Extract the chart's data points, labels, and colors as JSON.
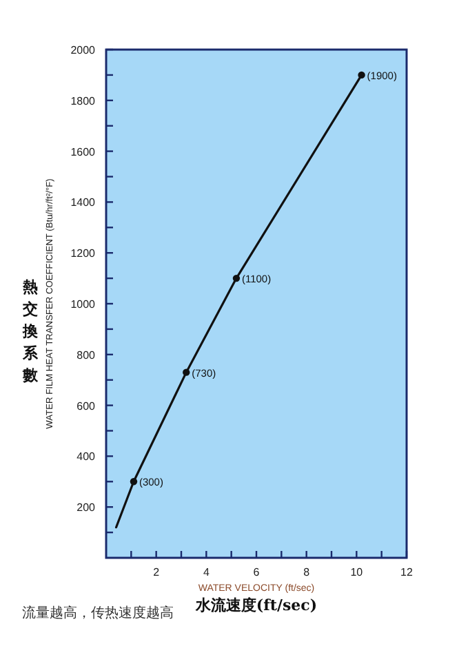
{
  "chart_data": {
    "type": "line",
    "ylabel": "WATER FILM HEAT TRANSFER COEFFICIENT (Btu/hr/ft²/°F)",
    "xlabel": "WATER VELOCITY (ft/sec)",
    "annotations": [
      "熱交換系數",
      "水流速度(ft/sec)",
      "流量越高，传热速度越高"
    ],
    "xlim": [
      0,
      12
    ],
    "ylim": [
      0,
      2000
    ],
    "xticks": [
      {
        "value": 1,
        "label": null
      },
      2,
      {
        "value": 3,
        "label": null
      },
      4,
      {
        "value": 5,
        "label": null
      },
      6,
      {
        "value": 7,
        "label": null
      },
      8,
      {
        "value": 9,
        "label": null
      },
      10,
      {
        "value": 11,
        "label": null
      },
      12
    ],
    "yticks": [
      {
        "value": 100,
        "label": null
      },
      200,
      {
        "value": 300,
        "label": null
      },
      400,
      {
        "value": 500,
        "label": null
      },
      600,
      {
        "value": 700,
        "label": null
      },
      800,
      {
        "value": 900,
        "label": null
      },
      1000,
      {
        "value": 1100,
        "label": null
      },
      1200,
      {
        "value": 1300,
        "label": null
      },
      1400,
      {
        "value": 1500,
        "label": null
      },
      1600,
      {
        "value": 1700,
        "label": null
      },
      1800,
      {
        "value": 1900,
        "label": null
      },
      2000
    ],
    "grid": false,
    "series": [
      {
        "type": "line",
        "color": "#111111",
        "marker": "none",
        "x": [
          0.4,
          1.1,
          3.2,
          5.2,
          10.2
        ],
        "values": [
          120,
          300,
          730,
          1100,
          1900
        ]
      },
      {
        "type": "scatter",
        "color": "#111111",
        "marker": "circle",
        "x": [
          1.1,
          3.2,
          5.2,
          10.2
        ],
        "values": [
          300,
          730,
          1100,
          1900
        ],
        "value_labels": [
          "(300)",
          "(730)",
          "(1100)",
          "(1900)"
        ]
      }
    ]
  }
}
